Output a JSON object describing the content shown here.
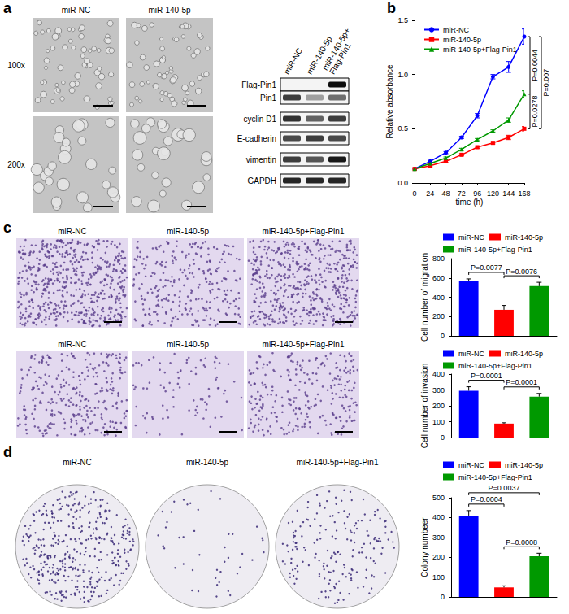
{
  "panels": {
    "a": {
      "label": "a",
      "micrographs": {
        "columns": [
          "miR-NC",
          "miR-140-5p"
        ],
        "rows": [
          "100x",
          "200x"
        ]
      },
      "blot": {
        "lanes": [
          "miR-NC",
          "miR-140-5p",
          "miR-140-5p+ Flag-Pin1"
        ],
        "rows": [
          {
            "name": "Flag-Pin1",
            "intensity": [
              0,
              0,
              0.95
            ]
          },
          {
            "name": "Pin1",
            "intensity": [
              0.75,
              0.35,
              0.55
            ]
          },
          {
            "name": "cyclin D1",
            "intensity": [
              0.8,
              0.6,
              0.75
            ]
          },
          {
            "name": "E-cadherin",
            "intensity": [
              0.7,
              0.75,
              0.7
            ]
          },
          {
            "name": "vimentin",
            "intensity": [
              0.75,
              0.65,
              0.9
            ]
          },
          {
            "name": "GAPDH",
            "intensity": [
              0.85,
              0.85,
              0.85
            ]
          }
        ]
      }
    },
    "b": {
      "label": "b"
    },
    "c": {
      "label": "c",
      "images": [
        [
          "miR-NC",
          "miR-140-5p",
          "miR-140-5p+Flag-Pin1"
        ],
        [
          "miR-NC",
          "miR-140-5p",
          "miR-140-5p+Flag-Pin1"
        ]
      ]
    },
    "d": {
      "label": "d",
      "images": [
        "miR-NC",
        "miR-140-5p",
        "miR-140-5p+Flag-Pin1"
      ]
    }
  },
  "chart_data": [
    {
      "type": "line",
      "x": [
        0,
        24,
        48,
        72,
        96,
        120,
        144,
        168
      ],
      "xlim": [
        0,
        168
      ],
      "xticks": [
        0,
        24,
        48,
        72,
        96,
        120,
        144,
        168
      ],
      "ylim": [
        0,
        1.5
      ],
      "yticks": [
        {
          "value": 0,
          "label": "0.0"
        },
        0.5,
        {
          "value": 1,
          "label": "1.0"
        },
        1.5
      ],
      "xlabel": "time (h)",
      "ylabel": "Relative absorbance",
      "legend": "upper left",
      "grid": false,
      "series": [
        {
          "name": "miR-NC",
          "color": "#0000ff",
          "marker": "circle",
          "values": [
            0.13,
            0.2,
            0.28,
            0.42,
            0.62,
            0.98,
            1.07,
            1.35
          ],
          "errors": [
            0.01,
            0.01,
            0.01,
            0.01,
            0.02,
            0.02,
            0.05,
            0.07
          ]
        },
        {
          "name": "miR-140-5p",
          "color": "#ff0000",
          "marker": "square",
          "values": [
            0.13,
            0.16,
            0.2,
            0.26,
            0.33,
            0.37,
            0.42,
            0.5
          ],
          "errors": [
            0.01,
            0.01,
            0.01,
            0.01,
            0.01,
            0.01,
            0.02,
            0.02
          ]
        },
        {
          "name": "miR-140-5p+Flag-Pin1",
          "color": "#009900",
          "marker": "triangle",
          "values": [
            0.13,
            0.18,
            0.23,
            0.31,
            0.4,
            0.48,
            0.58,
            0.82
          ],
          "errors": [
            0.01,
            0.01,
            0.01,
            0.01,
            0.01,
            0.01,
            0.02,
            0.03
          ]
        }
      ],
      "annotations": [
        {
          "text": "P=0.007",
          "between": [
            "miR-NC",
            "miR-140-5p"
          ]
        },
        {
          "text": "P=0.0044",
          "between": [
            "miR-NC",
            "miR-140-5p+Flag-Pin1"
          ]
        },
        {
          "text": "P=0.0278",
          "between": [
            "miR-140-5p+Flag-Pin1",
            "miR-140-5p"
          ]
        }
      ]
    },
    {
      "type": "bar",
      "categories": [
        "miR-NC",
        "miR-140-5p",
        "miR-140-5p+Flag-Pin1"
      ],
      "values": [
        565,
        270,
        515
      ],
      "errors": [
        25,
        45,
        40
      ],
      "colors": [
        "#0000ff",
        "#ff0000",
        "#009900"
      ],
      "ylim": [
        0,
        800
      ],
      "yticks": [
        0,
        200,
        400,
        600,
        800
      ],
      "ylabel": "Cell number of migration",
      "legend": "top",
      "tick_labels": "y",
      "grid": false,
      "annotations": [
        {
          "text": "P=0.0077",
          "between": [
            "miR-NC",
            "miR-140-5p"
          ]
        },
        {
          "text": "P=0.0076",
          "between": [
            "miR-140-5p",
            "miR-140-5p+Flag-Pin1"
          ]
        }
      ]
    },
    {
      "type": "bar",
      "categories": [
        "miR-NC",
        "miR-140-5p",
        "miR-140-5p+Flag-Pin1"
      ],
      "values": [
        295,
        88,
        258
      ],
      "errors": [
        25,
        5,
        20
      ],
      "colors": [
        "#0000ff",
        "#ff0000",
        "#009900"
      ],
      "ylim": [
        0,
        400
      ],
      "yticks": [
        0,
        100,
        200,
        300,
        400
      ],
      "ylabel": "Cell number of invasion",
      "legend": "top",
      "tick_labels": "y",
      "grid": false,
      "annotations": [
        {
          "text": "P=0.0001",
          "between": [
            "miR-NC",
            "miR-140-5p"
          ]
        },
        {
          "text": "P=0.0001",
          "between": [
            "miR-140-5p",
            "miR-140-5p+Flag-Pin1"
          ]
        }
      ]
    },
    {
      "type": "bar",
      "categories": [
        "miR-NC",
        "miR-140-5p",
        "miR-140-5p+Flag-Pin1"
      ],
      "values": [
        410,
        48,
        205
      ],
      "errors": [
        25,
        8,
        15
      ],
      "colors": [
        "#0000ff",
        "#ff0000",
        "#009900"
      ],
      "ylim": [
        0,
        500
      ],
      "yticks": [
        0,
        100,
        200,
        300,
        400,
        500
      ],
      "ylabel": "Colony numbeer",
      "legend": "top",
      "tick_labels": "y",
      "grid": false,
      "annotations": [
        {
          "text": "P=0.0004",
          "between": [
            "miR-NC",
            "miR-140-5p"
          ]
        },
        {
          "text": "P=0.0037",
          "between": [
            "miR-NC",
            "miR-140-5p+Flag-Pin1"
          ]
        },
        {
          "text": "P=0.0008",
          "between": [
            "miR-140-5p",
            "miR-140-5p+Flag-Pin1"
          ]
        }
      ]
    }
  ]
}
